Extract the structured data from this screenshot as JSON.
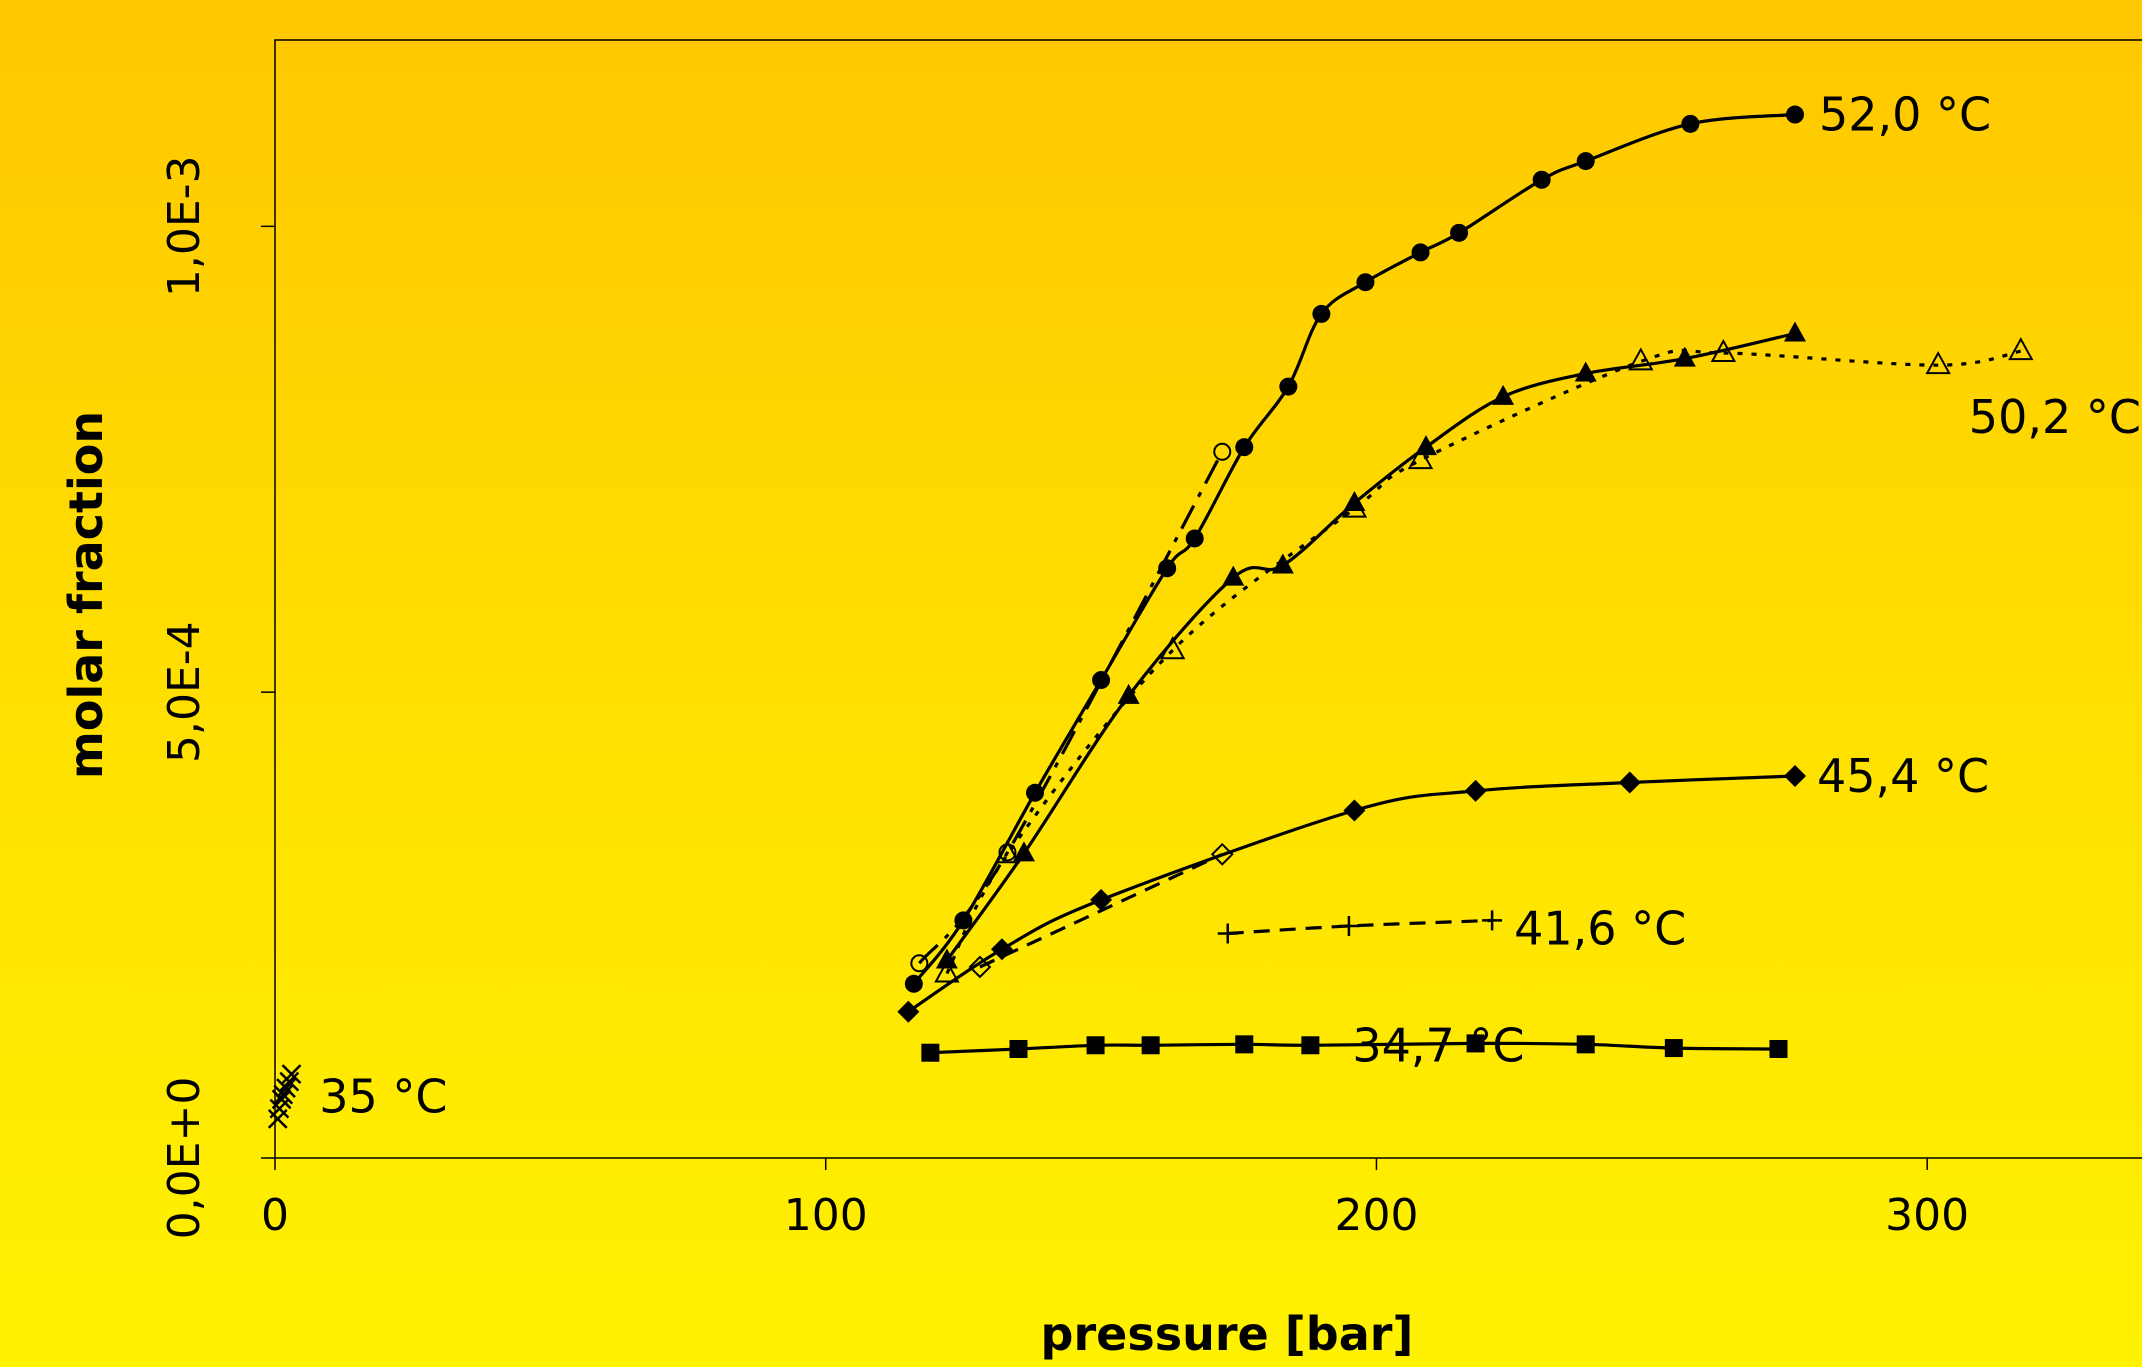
{
  "chart_data": {
    "type": "line",
    "title": "",
    "xlabel": "pressure [bar]",
    "ylabel": "molar fraction",
    "xlim": [
      0,
      345
    ],
    "ylim": [
      0,
      0.0012
    ],
    "x_ticks": [
      {
        "value": 0,
        "label": "0"
      },
      {
        "value": 100,
        "label": "100"
      },
      {
        "value": 200,
        "label": "200"
      },
      {
        "value": 300,
        "label": "300"
      }
    ],
    "y_ticks": [
      {
        "value": 0,
        "label": "0,0E+0"
      },
      {
        "value": 0.0005,
        "label": "5,0E-4"
      },
      {
        "value": 0.001,
        "label": "1,0E-3"
      }
    ],
    "grid": false,
    "series": [
      {
        "label": "52,0 °C",
        "marker": "filled-circle",
        "line": "solid",
        "x": [
          116,
          125,
          138,
          150,
          162,
          167,
          176,
          184,
          190,
          198,
          208,
          215,
          230,
          238,
          257,
          276
        ],
        "y": [
          0.000187,
          0.000255,
          0.000392,
          0.000513,
          0.000633,
          0.000665,
          0.000763,
          0.000828,
          0.000906,
          0.00094,
          0.000972,
          0.000993,
          0.00105,
          0.00107,
          0.00111,
          0.00112
        ]
      },
      {
        "label": "",
        "marker": "open-circle",
        "line": "dash-dot",
        "x": [
          117,
          133,
          172
        ],
        "y": [
          0.000209,
          0.000328,
          0.000758
        ]
      },
      {
        "label": "",
        "marker": "filled-triangle",
        "line": "solid",
        "x": [
          122,
          136,
          155,
          174,
          183,
          196,
          209,
          223,
          238,
          256,
          276
        ],
        "y": [
          0.000212,
          0.000327,
          0.000496,
          0.000623,
          0.000636,
          0.000703,
          0.000763,
          0.000817,
          0.000842,
          0.000858,
          0.000885
        ]
      },
      {
        "label": "50,2 °C",
        "marker": "open-triangle",
        "line": "dotted",
        "x": [
          122,
          133,
          163,
          196,
          208,
          248,
          263,
          302,
          317
        ],
        "y": [
          0.000198,
          0.000326,
          0.000545,
          0.000697,
          0.000749,
          0.000855,
          0.000864,
          0.000851,
          0.000866
        ]
      },
      {
        "label": "45,4 °C",
        "marker": "filled-diamond",
        "line": "solid",
        "x": [
          115,
          132,
          150,
          196,
          218,
          246,
          276
        ],
        "y": [
          0.000157,
          0.000224,
          0.000277,
          0.000373,
          0.000394,
          0.000403,
          0.00041
        ]
      },
      {
        "label": "",
        "marker": "open-diamond",
        "line": "dashed",
        "x": [
          128,
          172
        ],
        "y": [
          0.000205,
          0.000326
        ]
      },
      {
        "label": "41,6 °C",
        "marker": "plus",
        "line": "dashed",
        "x": [
          173,
          195,
          221
        ],
        "y": [
          0.000241,
          0.000249,
          0.000255
        ]
      },
      {
        "label": "34,7 °C",
        "marker": "filled-square",
        "line": "solid",
        "x": [
          119,
          135,
          149,
          159,
          176,
          188,
          218,
          238,
          254,
          273
        ],
        "y": [
          0.000113,
          0.000117,
          0.000121,
          0.000121,
          0.000122,
          0.000121,
          0.000123,
          0.000122,
          0.000118,
          0.000117
        ]
      },
      {
        "label": "35 °C",
        "marker": "x",
        "line": "none",
        "x": [
          0.5,
          0.8,
          1.2,
          1.5,
          2.0,
          2.6,
          3.0
        ],
        "y": [
          4.2e-05,
          5.3e-05,
          6.3e-05,
          6.8e-05,
          7.5e-05,
          8.2e-05,
          9e-05
        ]
      }
    ]
  }
}
